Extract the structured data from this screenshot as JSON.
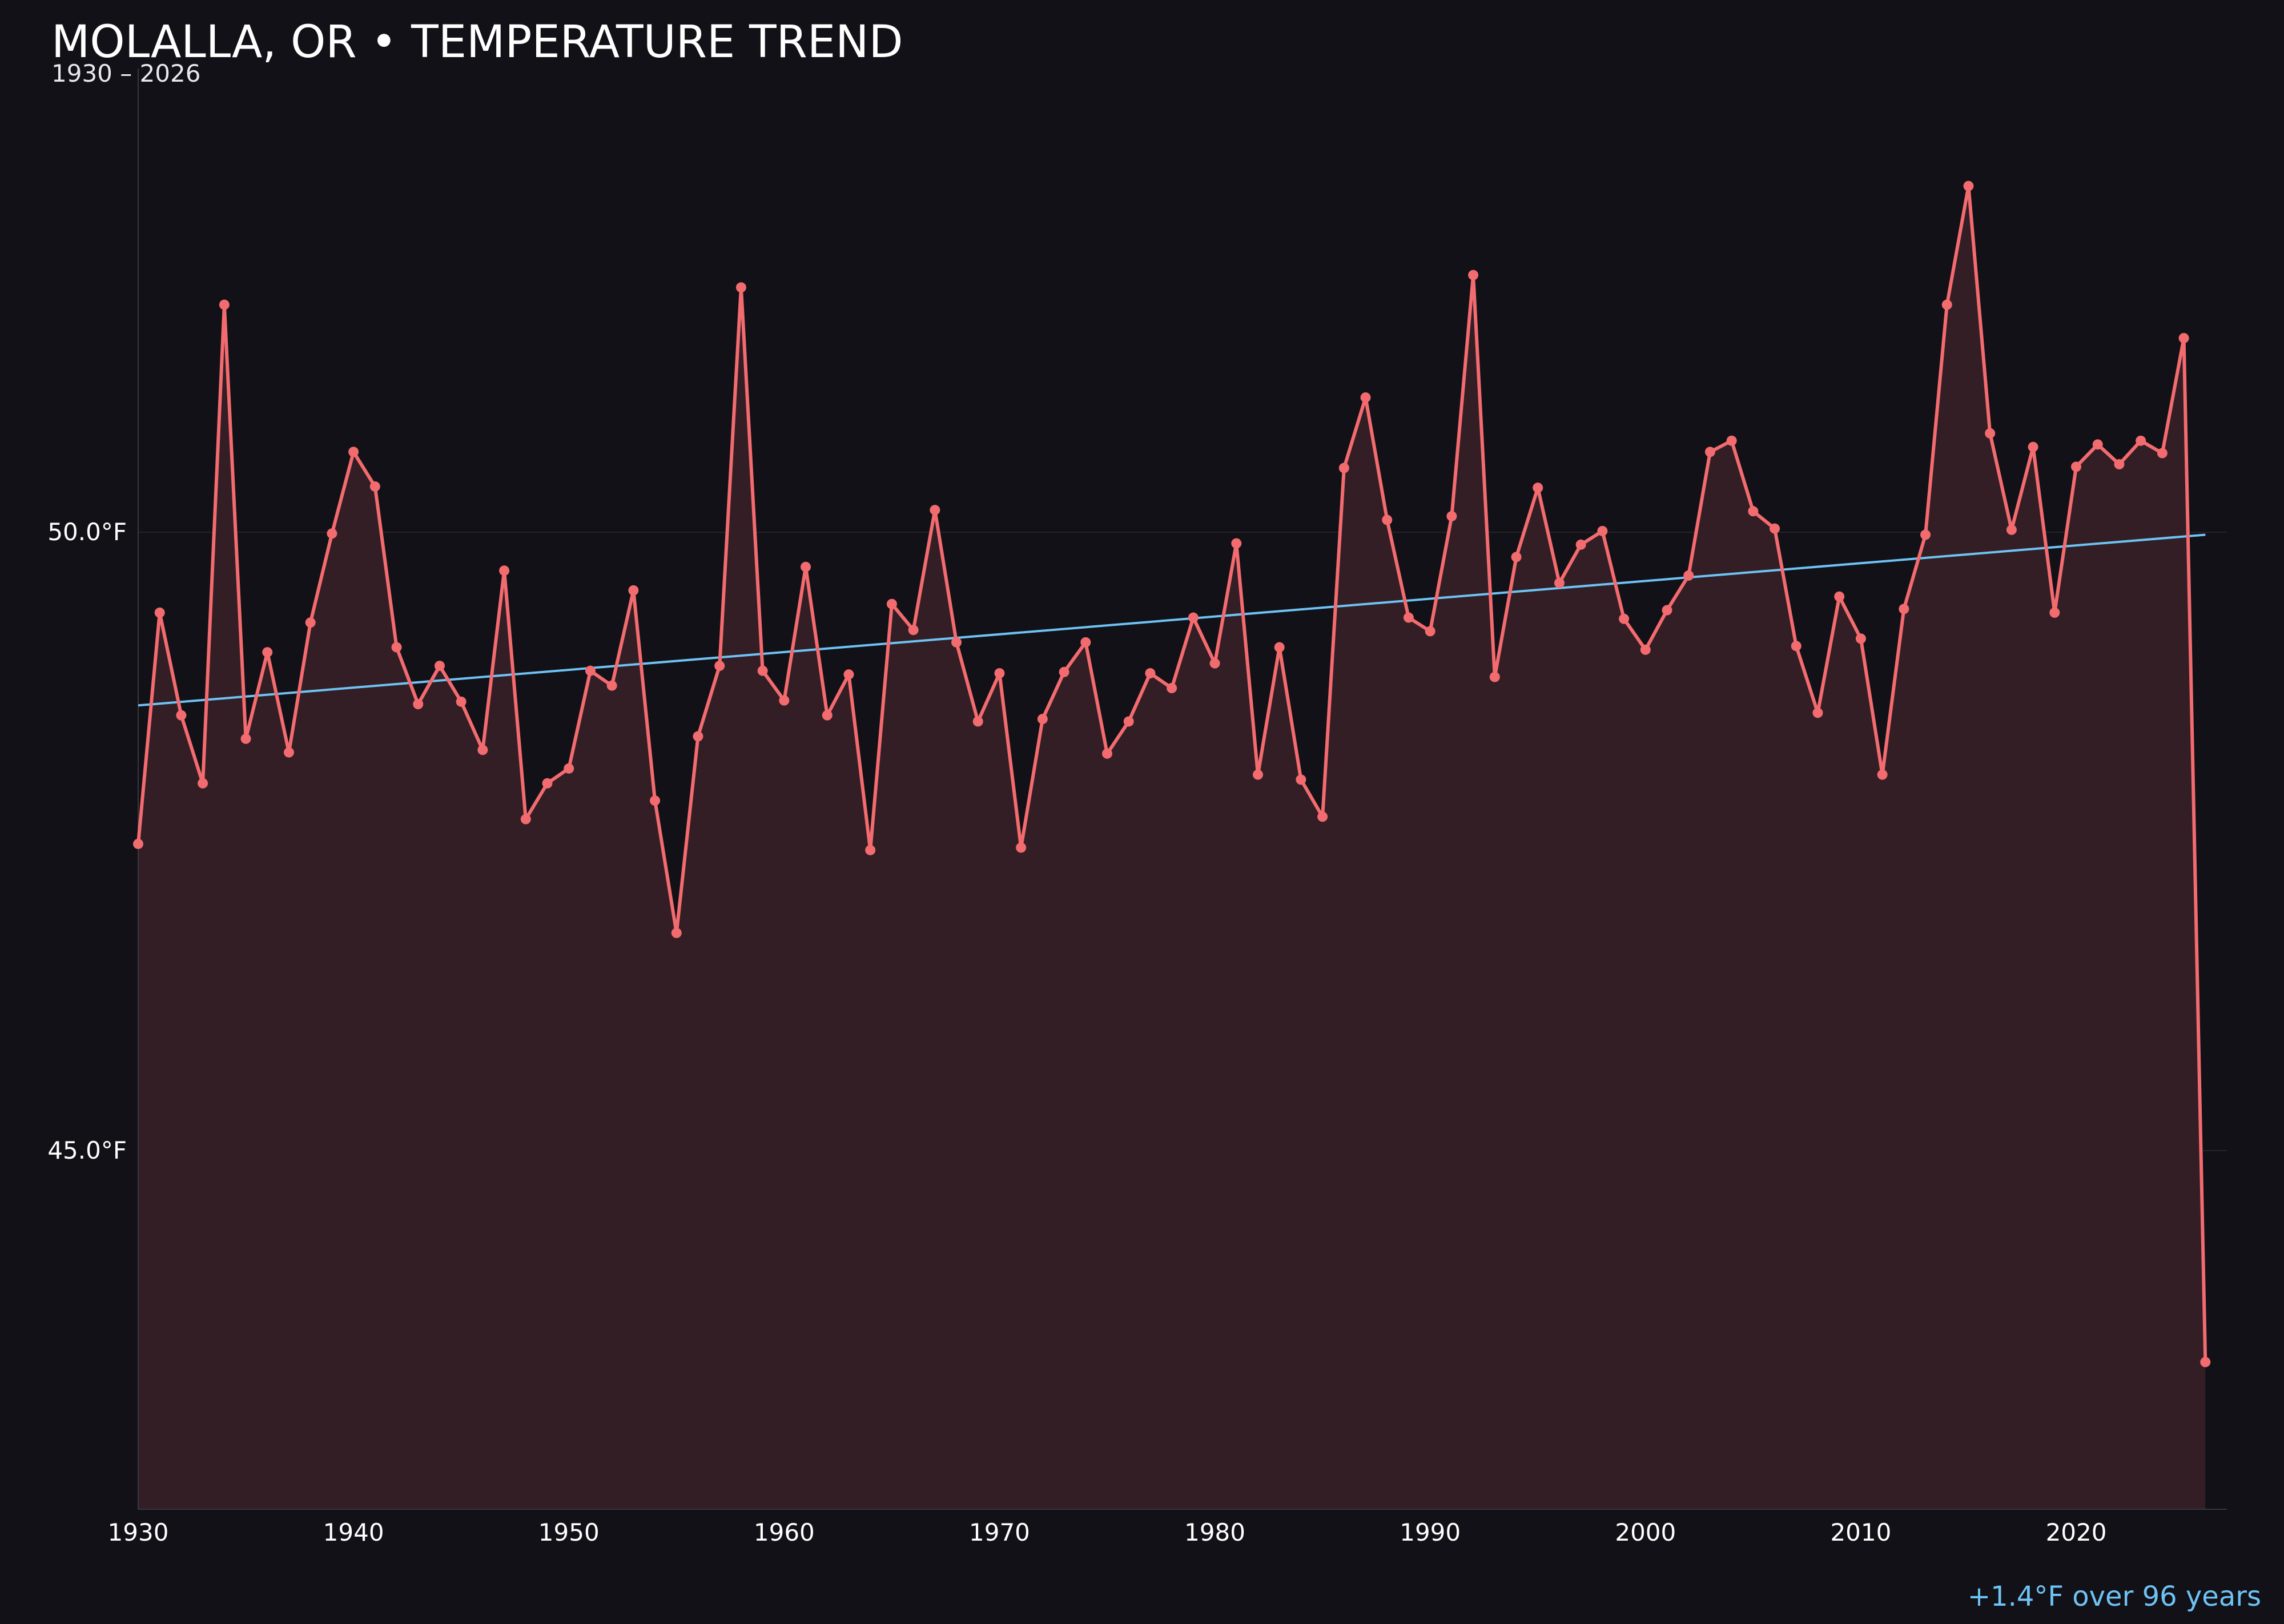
{
  "colors": {
    "background": "#121117",
    "series": "#f26b6f",
    "fill": "#331e25",
    "trend": "#6ec3f4",
    "grid": "#26232b",
    "axis": "#3a3740",
    "text": "#ffffff"
  },
  "chart_data": {
    "type": "line",
    "title": "MOLALLA, OR • TEMPERATURE TREND",
    "subtitle": "1930 – 2026",
    "xlabel": "",
    "ylabel": "",
    "xlim": [
      1930,
      2027
    ],
    "ylim": [
      42.1,
      53.75
    ],
    "x_ticks": [
      1930,
      1940,
      1950,
      1960,
      1970,
      1980,
      1990,
      2000,
      2010,
      2020
    ],
    "x_tick_labels": [
      "1930",
      "1940",
      "1950",
      "1960",
      "1970",
      "1980",
      "1990",
      "2000",
      "2010",
      "2020"
    ],
    "y_ticks": [
      45.0,
      50.0
    ],
    "y_tick_labels": [
      "45.0°F",
      "50.0°F"
    ],
    "grid": true,
    "series": [
      {
        "x": [
          1930,
          1931,
          1932,
          1933,
          1934,
          1935,
          1936,
          1937,
          1938,
          1939,
          1940,
          1941,
          1942,
          1943,
          1944,
          1945,
          1946,
          1947,
          1948,
          1949,
          1950,
          1951,
          1952,
          1953,
          1954,
          1955,
          1956,
          1957,
          1958,
          1959,
          1960,
          1961,
          1962,
          1963,
          1964,
          1965,
          1966,
          1967,
          1968,
          1969,
          1970,
          1971,
          1972,
          1973,
          1974,
          1975,
          1976,
          1977,
          1978,
          1979,
          1980,
          1981,
          1982,
          1983,
          1984,
          1985,
          1986,
          1987,
          1988,
          1989,
          1990,
          1991,
          1992,
          1993,
          1994,
          1995,
          1996,
          1997,
          1998,
          1999,
          2000,
          2001,
          2002,
          2003,
          2004,
          2005,
          2006,
          2007,
          2008,
          2009,
          2010,
          2011,
          2012,
          2013,
          2014,
          2015,
          2016,
          2017,
          2018,
          2019,
          2020,
          2021,
          2022,
          2023,
          2024,
          2025,
          2026
        ],
        "values": [
          47.48,
          49.35,
          48.52,
          47.97,
          51.84,
          48.33,
          49.03,
          48.22,
          49.27,
          49.99,
          50.65,
          50.37,
          49.07,
          48.61,
          48.92,
          48.63,
          48.24,
          49.69,
          47.68,
          47.97,
          48.09,
          48.88,
          48.76,
          49.53,
          47.83,
          46.76,
          48.35,
          48.92,
          51.98,
          48.88,
          48.64,
          49.72,
          48.52,
          48.85,
          47.43,
          49.42,
          49.21,
          50.18,
          49.11,
          48.47,
          48.86,
          47.45,
          48.49,
          48.87,
          49.11,
          48.21,
          48.47,
          48.86,
          48.74,
          49.31,
          48.94,
          49.91,
          48.04,
          49.07,
          48.0,
          47.7,
          50.52,
          51.09,
          50.1,
          49.31,
          49.2,
          50.13,
          52.08,
          48.83,
          49.8,
          50.36,
          49.59,
          49.9,
          50.01,
          49.3,
          49.05,
          49.37,
          49.65,
          50.65,
          50.74,
          50.17,
          50.03,
          49.08,
          48.54,
          49.48,
          49.14,
          48.04,
          49.38,
          49.98,
          51.84,
          52.8,
          50.8,
          50.02,
          50.69,
          49.35,
          50.53,
          50.71,
          50.55,
          50.74,
          50.64,
          51.57,
          43.29
        ]
      }
    ],
    "trend": {
      "x": [
        1930,
        2026
      ],
      "values": [
        48.6,
        49.98
      ]
    },
    "annotation": "+1.4°F over 96 years"
  }
}
